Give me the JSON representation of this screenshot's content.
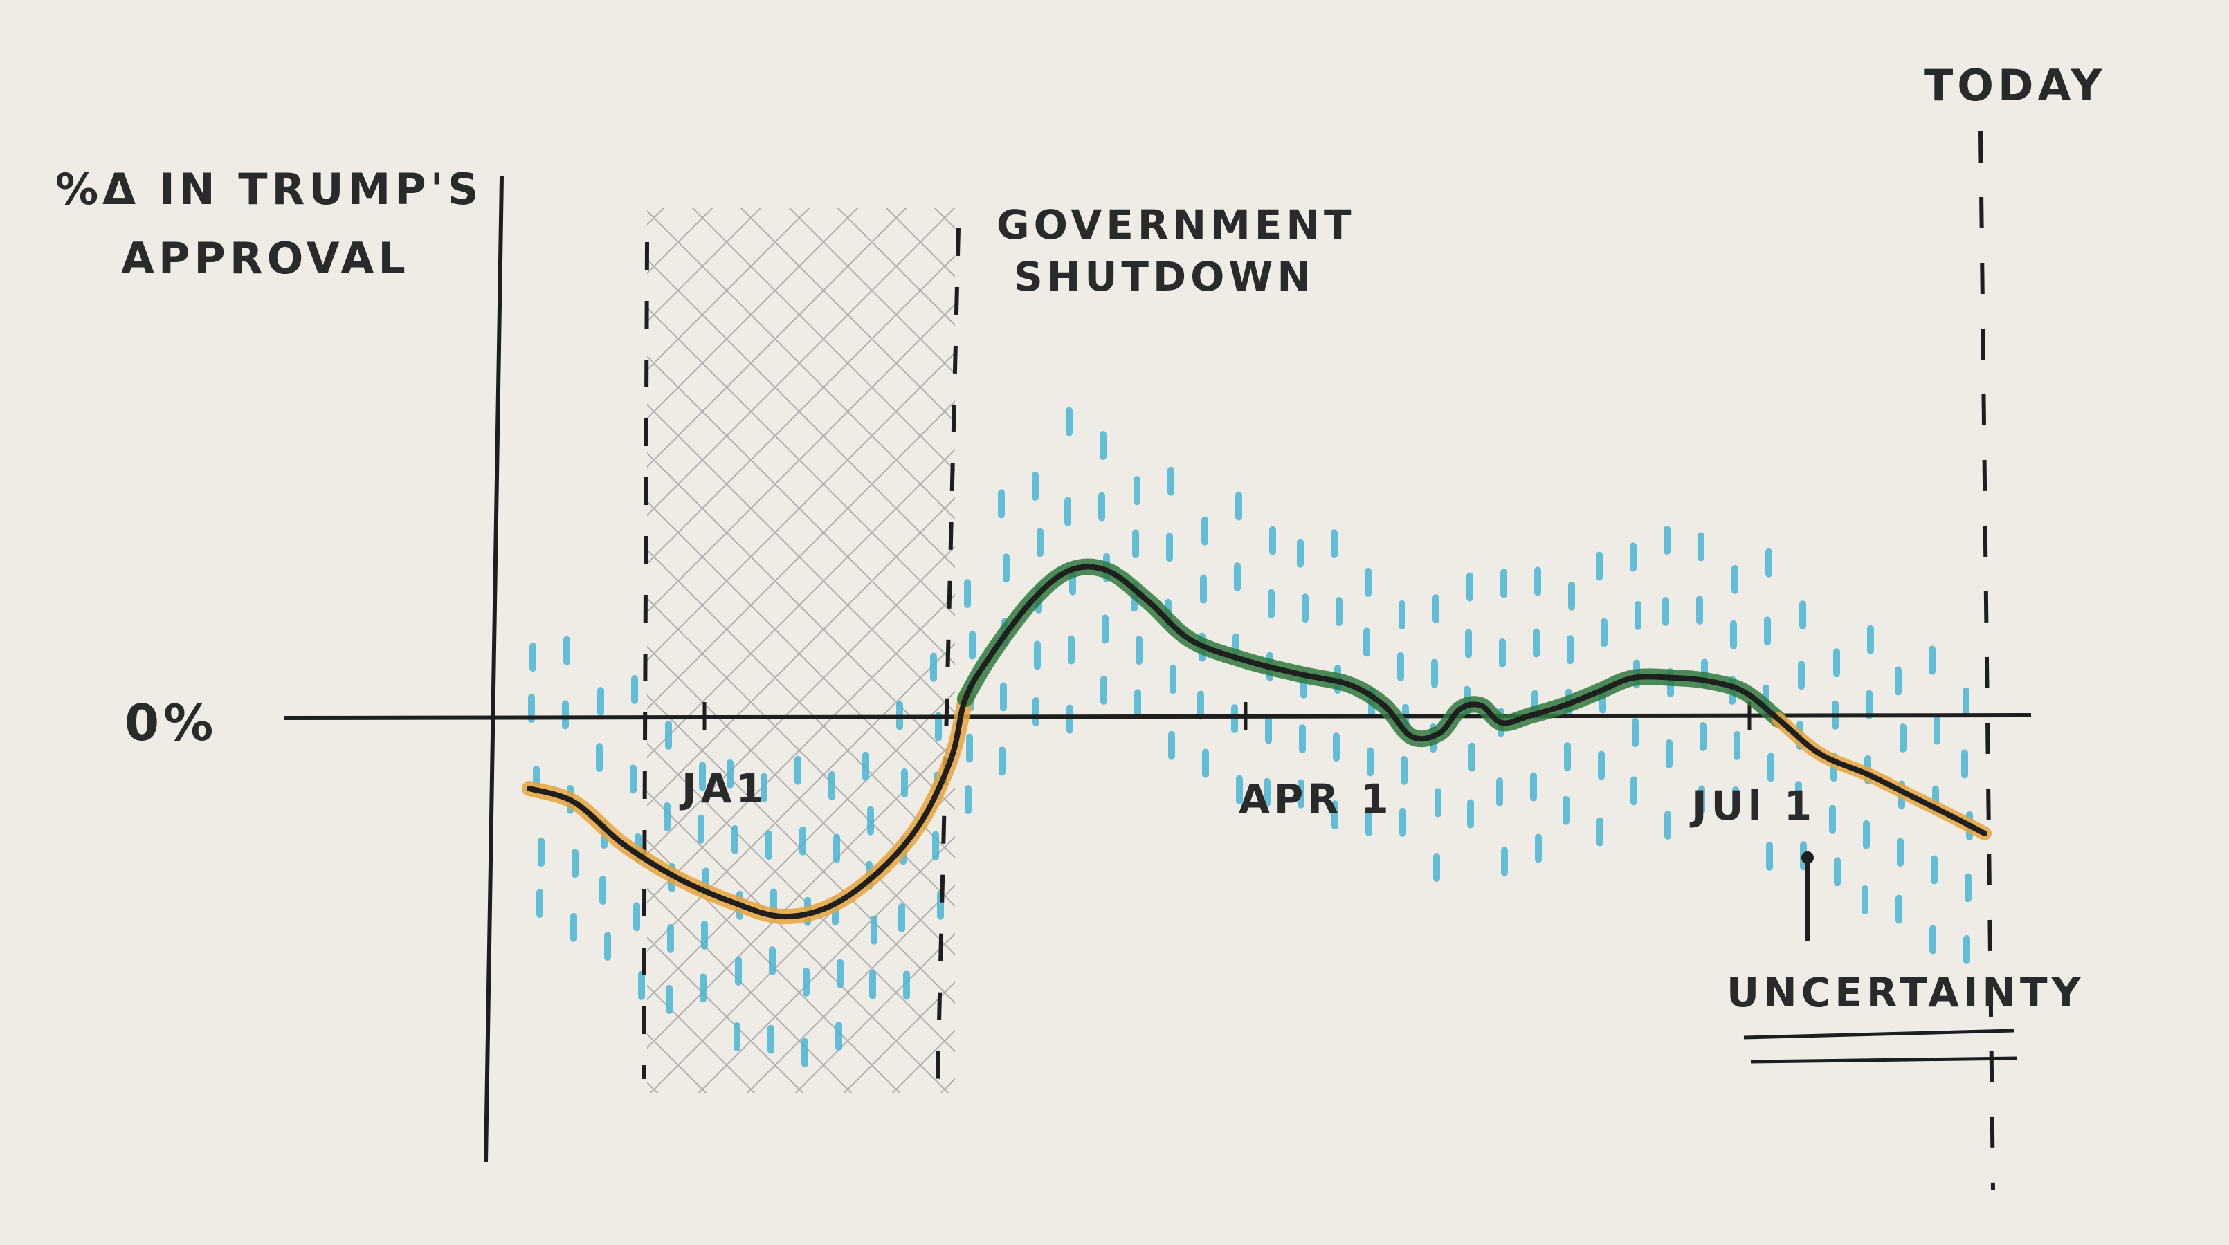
{
  "chart_data": {
    "type": "line",
    "ylabel_line1": "%Δ IN TRUMP'S",
    "ylabel_line2": "APPROVAL",
    "zero_label": "0%",
    "x_ticks": [
      "JA1",
      "APR 1",
      "JUl 1"
    ],
    "annotations": {
      "shutdown_line1": "GOVERNMENT",
      "shutdown_line2": "SHUTDOWN",
      "today": "TODAY",
      "uncertainty": "UNCERTAINTY"
    },
    "x_range": [
      "Dec 1",
      "Aug 15"
    ],
    "zero_line": 0,
    "shutdown_period": [
      "Dec 22",
      "Jan 25"
    ],
    "colors": {
      "line": "#1f1f1f",
      "positive_fill": "#2f7a3e",
      "negative_fill": "#e9a43a",
      "uncertainty_ticks": "#4ab6d6",
      "hatch": "#8f8f8f",
      "axis": "#222222"
    }
  }
}
